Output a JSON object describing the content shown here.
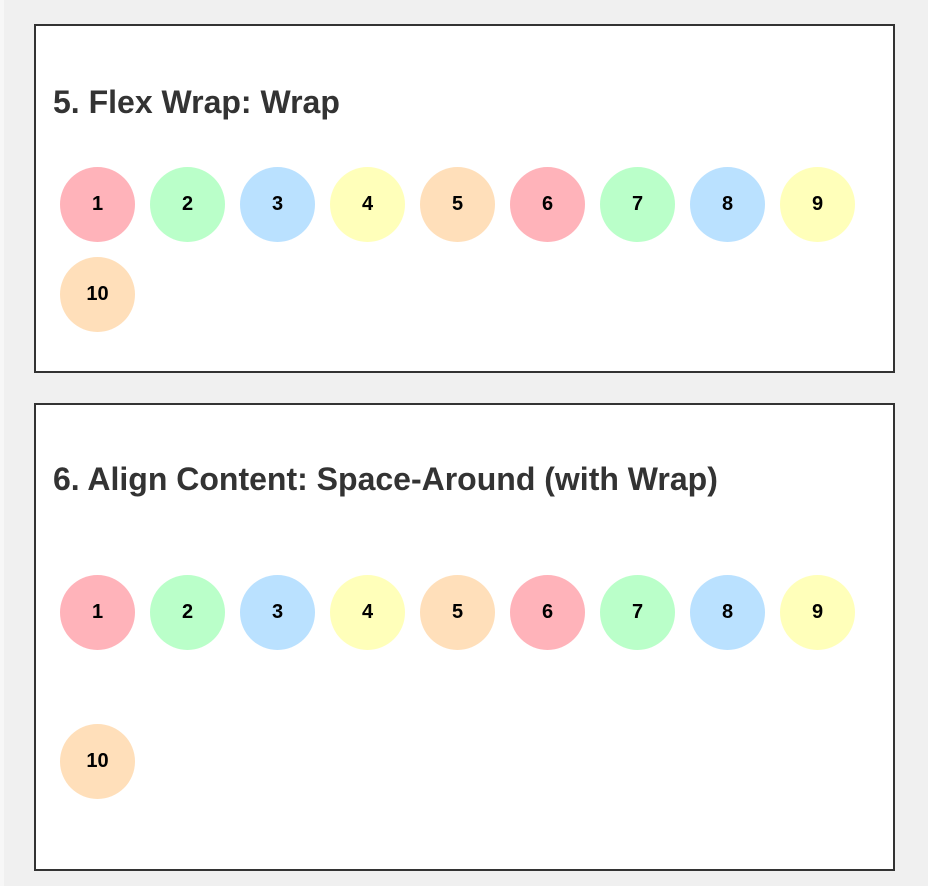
{
  "palette": {
    "pink": "#ffb3ba",
    "green": "#baffc9",
    "blue": "#bae1ff",
    "yellow": "#ffffba",
    "peach": "#ffdfba"
  },
  "panels": [
    {
      "title": "5. Flex Wrap: Wrap",
      "items": [
        {
          "label": "1",
          "color": "#ffb3ba"
        },
        {
          "label": "2",
          "color": "#baffc9"
        },
        {
          "label": "3",
          "color": "#bae1ff"
        },
        {
          "label": "4",
          "color": "#ffffba"
        },
        {
          "label": "5",
          "color": "#ffdfba"
        },
        {
          "label": "6",
          "color": "#ffb3ba"
        },
        {
          "label": "7",
          "color": "#baffc9"
        },
        {
          "label": "8",
          "color": "#bae1ff"
        },
        {
          "label": "9",
          "color": "#ffffba"
        },
        {
          "label": "10",
          "color": "#ffdfba"
        }
      ]
    },
    {
      "title": "6. Align Content: Space-Around (with Wrap)",
      "items": [
        {
          "label": "1",
          "color": "#ffb3ba"
        },
        {
          "label": "2",
          "color": "#baffc9"
        },
        {
          "label": "3",
          "color": "#bae1ff"
        },
        {
          "label": "4",
          "color": "#ffffba"
        },
        {
          "label": "5",
          "color": "#ffdfba"
        },
        {
          "label": "6",
          "color": "#ffb3ba"
        },
        {
          "label": "7",
          "color": "#baffc9"
        },
        {
          "label": "8",
          "color": "#bae1ff"
        },
        {
          "label": "9",
          "color": "#ffffba"
        },
        {
          "label": "10",
          "color": "#ffdfba"
        }
      ]
    }
  ]
}
